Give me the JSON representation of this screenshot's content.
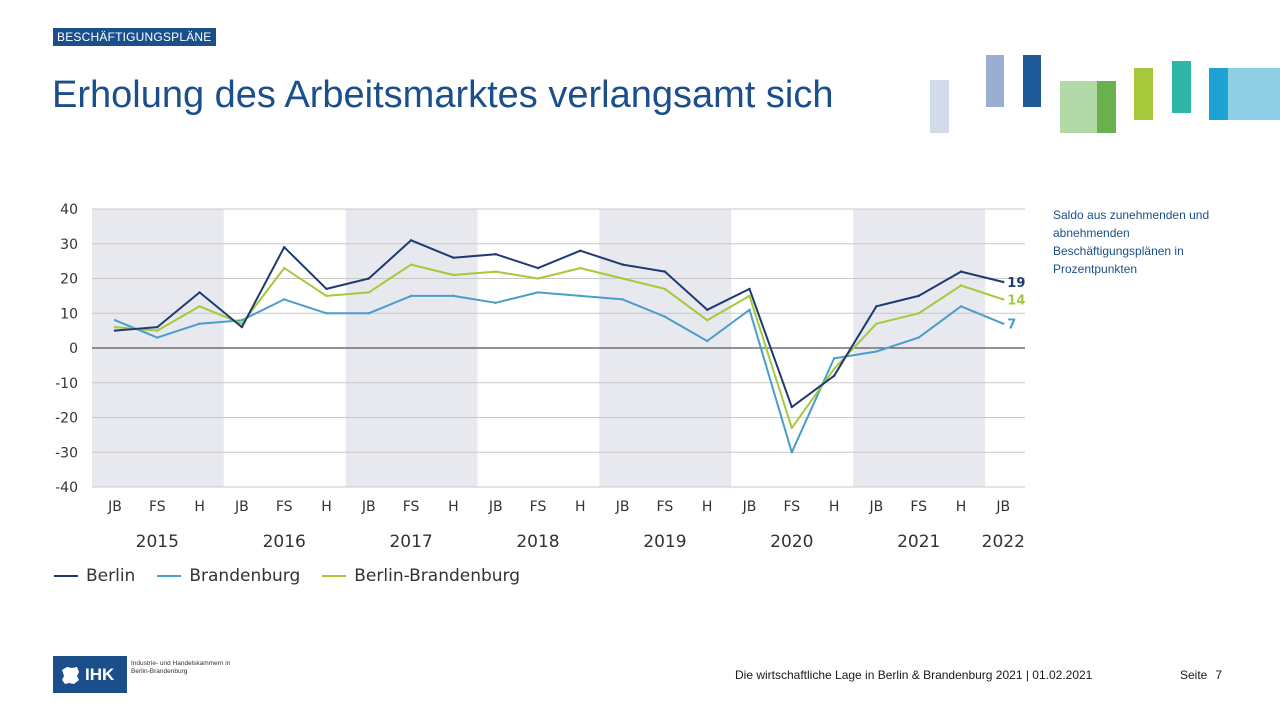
{
  "header": {
    "tag": "BESCHÄFTIGUNGSPLÄNE",
    "title": "Erholung des Arbeitsmarktes verlangsamt sich"
  },
  "note": "Saldo aus zunehmenden und abnehmenden Beschäftigungsplänen in Prozentpunkten",
  "colors": {
    "berlin": "#1f3a73",
    "brandenburg": "#4a9ec9",
    "berlin_brandenburg": "#a5c93a",
    "brand": "#1a4f8b",
    "band": "#e8e8ef"
  },
  "chart_data": {
    "type": "line",
    "title": "",
    "xlabel": "",
    "ylabel": "",
    "ylim": [
      -40,
      40
    ],
    "yticks": [
      40,
      30,
      20,
      10,
      0,
      -10,
      -20,
      -30,
      -40
    ],
    "categories": [
      "JB",
      "FS",
      "H",
      "JB",
      "FS",
      "H",
      "JB",
      "FS",
      "H",
      "JB",
      "FS",
      "H",
      "JB",
      "FS",
      "H",
      "JB",
      "FS",
      "H",
      "JB",
      "FS",
      "H",
      "JB"
    ],
    "years": [
      "2015",
      "2016",
      "2017",
      "2018",
      "2019",
      "2020",
      "2021",
      "2022"
    ],
    "series": [
      {
        "name": "Berlin",
        "color": "#1f3a73",
        "values": [
          5,
          6,
          16,
          6,
          29,
          17,
          20,
          31,
          26,
          27,
          23,
          28,
          24,
          22,
          11,
          17,
          -17,
          -8,
          12,
          15,
          22,
          19
        ],
        "end_label": "19"
      },
      {
        "name": "Brandenburg",
        "color": "#4a9ec9",
        "values": [
          8,
          3,
          7,
          8,
          14,
          10,
          10,
          15,
          15,
          13,
          16,
          15,
          14,
          9,
          2,
          11,
          -30,
          -3,
          -1,
          3,
          12,
          7
        ],
        "end_label": "7"
      },
      {
        "name": "Berlin-Brandenburg",
        "color": "#a5c93a",
        "values": [
          6,
          5,
          12,
          7,
          23,
          15,
          16,
          24,
          21,
          22,
          20,
          23,
          20,
          17,
          8,
          15,
          -23,
          -6,
          7,
          10,
          18,
          14
        ],
        "end_label": "14"
      }
    ],
    "grid": true,
    "legend": "bottom-left"
  },
  "logo": {
    "text": "IHK",
    "subtitle": "Industrie- und Handelskammern in Berlin-Brandenburg"
  },
  "footer": {
    "text": "Die wirtschaftliche Lage in Berlin & Brandenburg 2021 | 01.02.2021",
    "page_label": "Seite",
    "page_number": "7"
  }
}
